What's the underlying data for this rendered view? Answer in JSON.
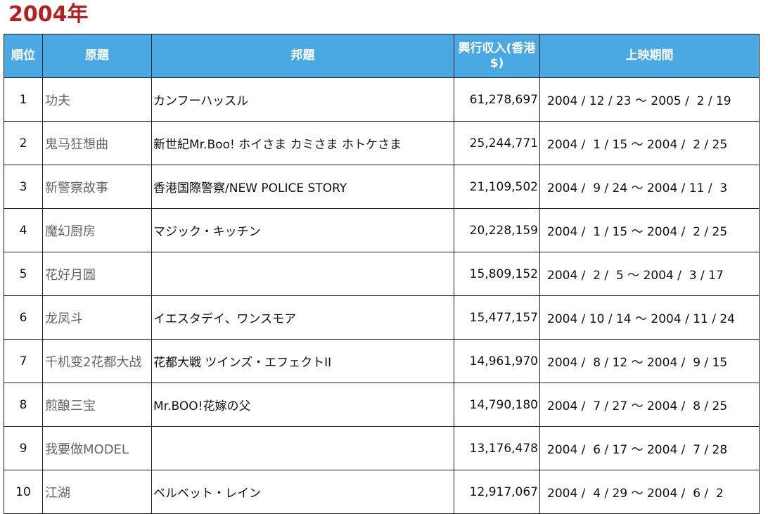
{
  "page": {
    "title": "2004年"
  },
  "table": {
    "headers": {
      "rank": "順位",
      "original_title": "原題",
      "japanese_title": "邦題",
      "gross": "興行収入(香港$)",
      "period": "上映期間"
    },
    "rows": [
      {
        "rank": "1",
        "original": "功夫",
        "japanese": "カンフーハッスル",
        "gross": "61,278,697",
        "period": "2004 / 12 / 23 ～ 2005 /  2 / 19"
      },
      {
        "rank": "2",
        "original": "鬼马狂想曲",
        "japanese": "新世紀Mr.Boo! ホイさま カミさま ホトケさま",
        "gross": "25,244,771",
        "period": "2004 /  1 / 15 ～ 2004 /  2 / 25"
      },
      {
        "rank": "3",
        "original": "新警察故事",
        "japanese": "香港国際警察/NEW POLICE STORY",
        "gross": "21,109,502",
        "period": "2004 /  9 / 24 ～ 2004 / 11 /  3"
      },
      {
        "rank": "4",
        "original": "魔幻厨房",
        "japanese": "マジック・キッチン",
        "gross": "20,228,159",
        "period": "2004 /  1 / 15 ～ 2004 /  2 / 25"
      },
      {
        "rank": "5",
        "original": "花好月圆",
        "japanese": "",
        "gross": "15,809,152",
        "period": "2004 /  2 /  5 ～ 2004 /  3 / 17"
      },
      {
        "rank": "6",
        "original": "龙凤斗",
        "japanese": "イエスタデイ、ワンスモア",
        "gross": "15,477,157",
        "period": "2004 / 10 / 14 ～ 2004 / 11 / 24"
      },
      {
        "rank": "7",
        "original": "千机变2花都大战",
        "japanese": "花都大戦 ツインズ・エフェクトII",
        "gross": "14,961,970",
        "period": "2004 /  8 / 12 ～ 2004 /  9 / 15"
      },
      {
        "rank": "8",
        "original": "煎酿三宝",
        "japanese": "Mr.BOO!花嫁の父",
        "gross": "14,790,180",
        "period": "2004 /  7 / 27 ～ 2004 /  8 / 25"
      },
      {
        "rank": "9",
        "original": "我要做MODEL",
        "japanese": "",
        "gross": "13,176,478",
        "period": "2004 /  6 / 17 ～ 2004 /  7 / 28"
      },
      {
        "rank": "10",
        "original": "江湖",
        "japanese": "ベルベット・レイン",
        "gross": "12,917,067",
        "period": "2004 /  4 / 29 ～ 2004 /  6 /  2"
      }
    ]
  }
}
